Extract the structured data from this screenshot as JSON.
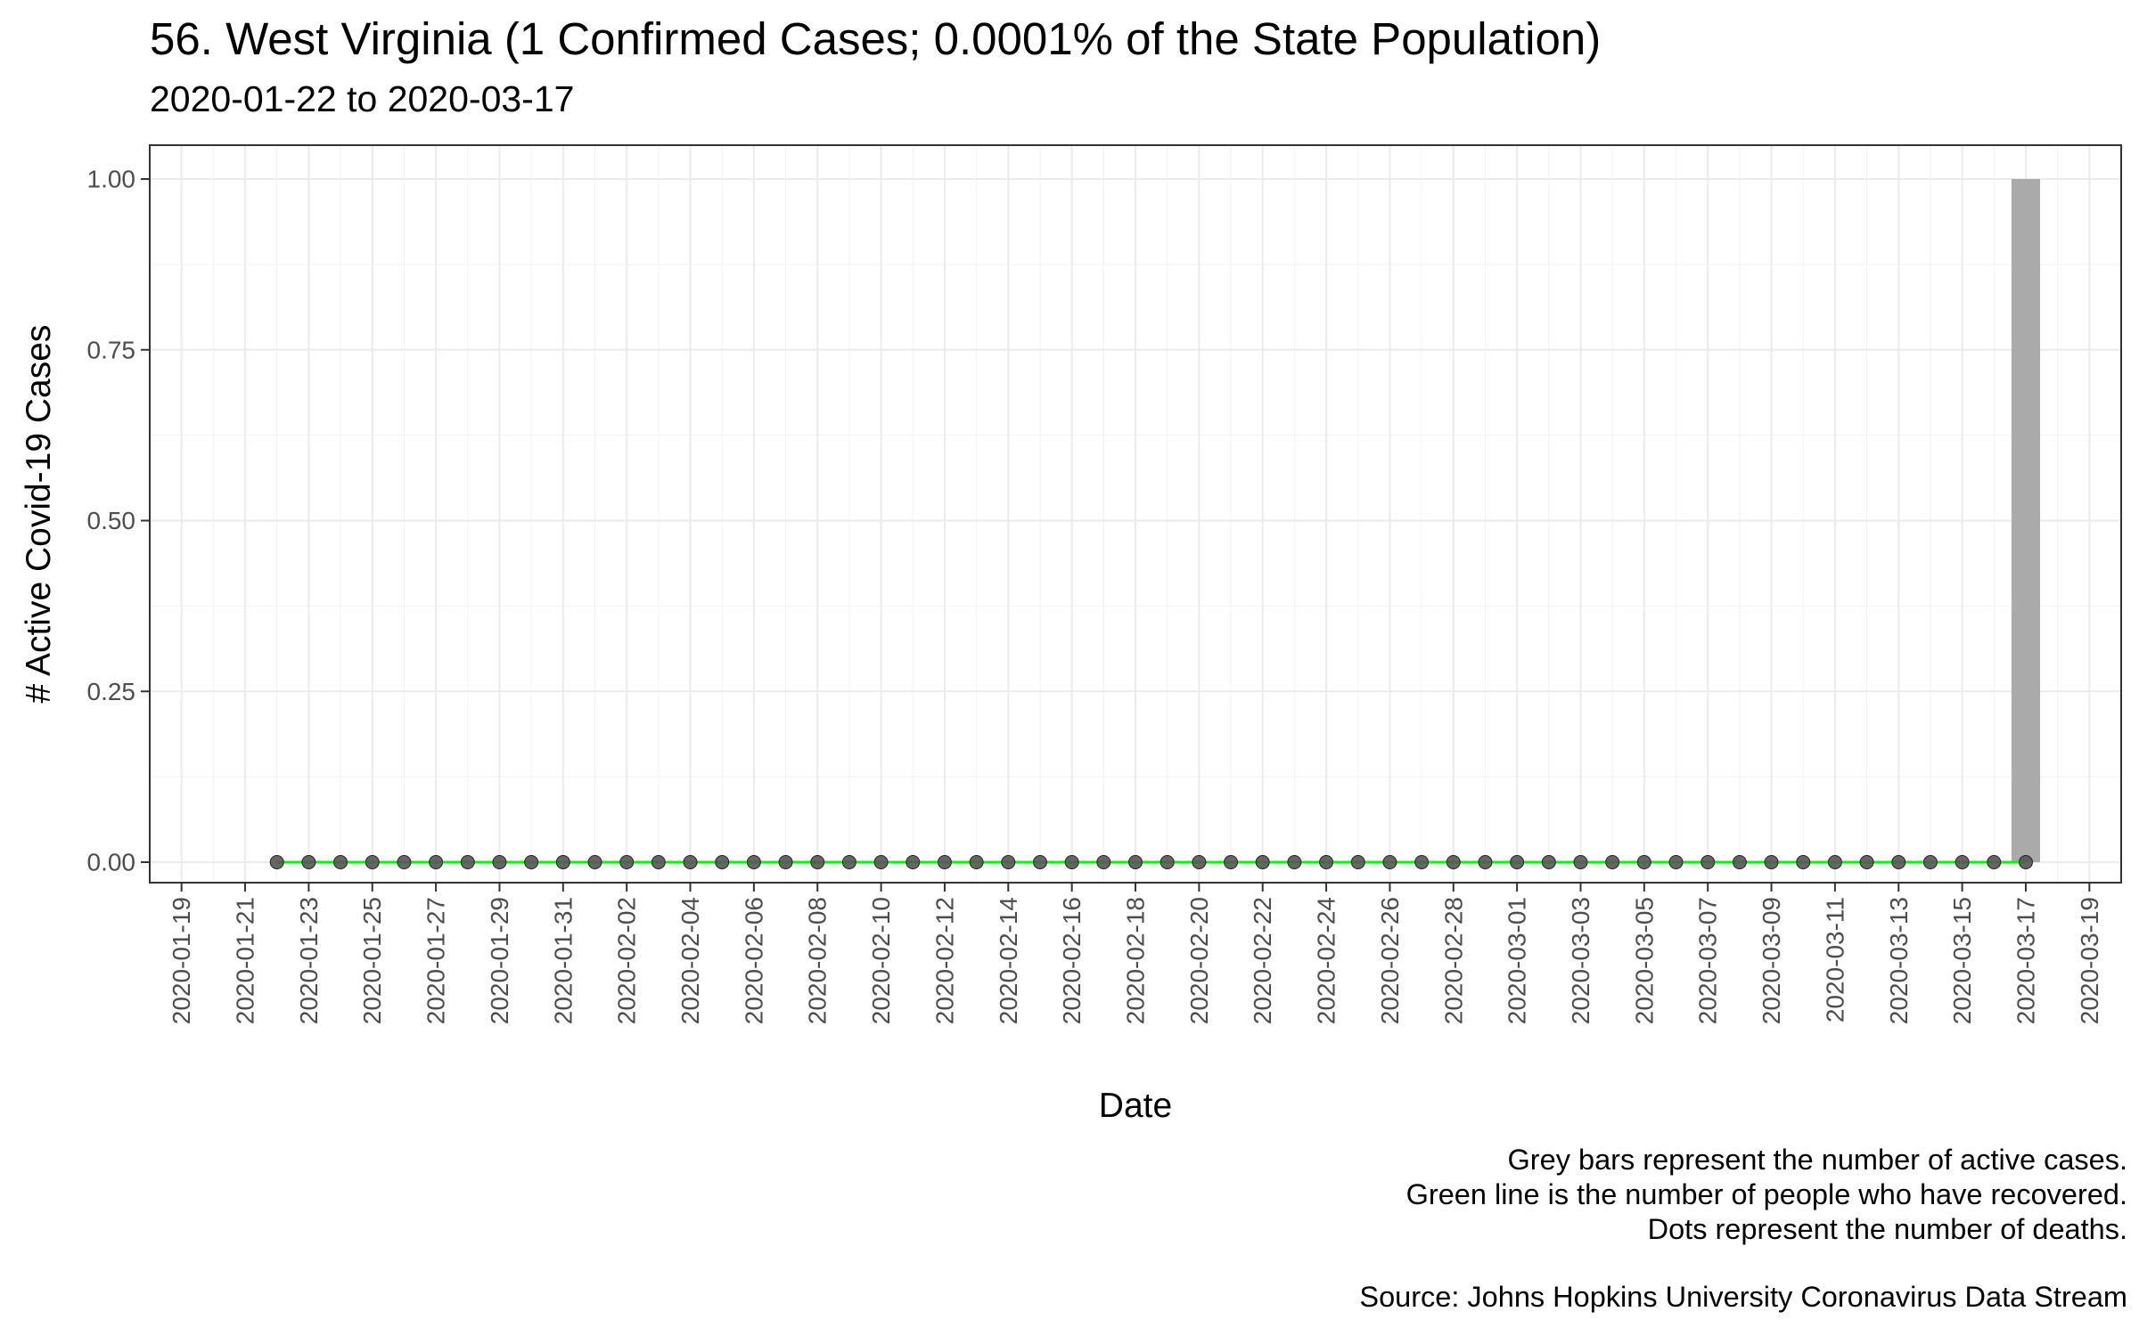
{
  "chart_data": {
    "type": "bar",
    "title": "56. West Virginia (1 Confirmed Cases; 0.0001% of the State Population)",
    "subtitle": "2020-01-22 to 2020-03-17",
    "xlabel": "Date",
    "ylabel": "# Active Covid-19 Cases",
    "x_range": [
      "2020-01-19",
      "2020-03-19"
    ],
    "ylim": [
      0,
      1
    ],
    "y_ticks": [
      "0.00",
      "0.25",
      "0.50",
      "0.75",
      "1.00"
    ],
    "x_ticks": [
      "2020-01-19",
      "2020-01-21",
      "2020-01-23",
      "2020-01-25",
      "2020-01-27",
      "2020-01-29",
      "2020-01-31",
      "2020-02-02",
      "2020-02-04",
      "2020-02-06",
      "2020-02-08",
      "2020-02-10",
      "2020-02-12",
      "2020-02-14",
      "2020-02-16",
      "2020-02-18",
      "2020-02-20",
      "2020-02-22",
      "2020-02-24",
      "2020-02-26",
      "2020-02-28",
      "2020-03-01",
      "2020-03-03",
      "2020-03-05",
      "2020-03-07",
      "2020-03-09",
      "2020-03-11",
      "2020-03-13",
      "2020-03-15",
      "2020-03-17",
      "2020-03-19"
    ],
    "grid": true,
    "date_range": [
      "2020-01-22",
      "2020-03-17"
    ],
    "active_cases": [
      {
        "date": "2020-03-17",
        "value": 1
      }
    ],
    "recovered_value": 0,
    "deaths_value": 0,
    "colors": {
      "bars": "#aaaaaa",
      "line": "#00ff00",
      "dots": "#555555"
    }
  },
  "caption": {
    "line1": "Grey bars represent the number of active cases.",
    "line2": "Green line is the number of people who have recovered.",
    "line3": "Dots represent the number of deaths.",
    "source": "Source: Johns Hopkins University Coronavirus Data Stream"
  }
}
